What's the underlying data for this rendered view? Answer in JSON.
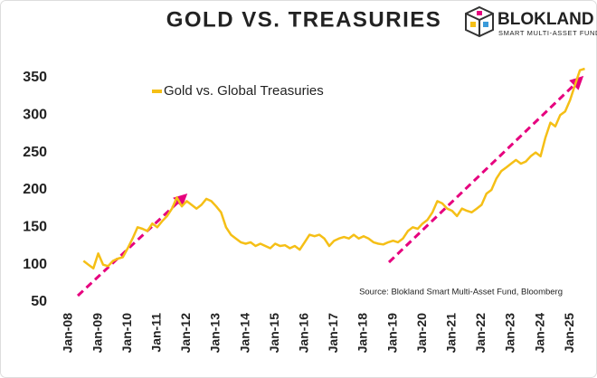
{
  "chart_data": {
    "type": "line",
    "title": "GOLD VS. TREASURIES",
    "brand": "BLOKLAND",
    "brand_tagline": "SMART MULTI-ASSET FUND",
    "source": "Source: Blokland Smart Multi-Asset Fund, Bloomberg",
    "categories": [
      "Jan-08",
      "Mar-08",
      "May-08",
      "Jul-08",
      "Sep-08",
      "Nov-08",
      "Jan-09",
      "Mar-09",
      "May-09",
      "Jul-09",
      "Sep-09",
      "Nov-09",
      "Jan-10",
      "Mar-10",
      "May-10",
      "Jul-10",
      "Sep-10",
      "Nov-10",
      "Jan-11",
      "Mar-11",
      "May-11",
      "Jul-11",
      "Sep-11",
      "Nov-11",
      "Jan-12",
      "Mar-12",
      "May-12",
      "Jul-12",
      "Sep-12",
      "Nov-12",
      "Jan-13",
      "Mar-13",
      "May-13",
      "Jul-13",
      "Sep-13",
      "Nov-13",
      "Jan-14",
      "Mar-14",
      "May-14",
      "Jul-14",
      "Sep-14",
      "Nov-14",
      "Jan-15",
      "Mar-15",
      "May-15",
      "Jul-15",
      "Sep-15",
      "Nov-15",
      "Jan-16",
      "Mar-16",
      "May-16",
      "Jul-16",
      "Sep-16",
      "Nov-16",
      "Jan-17",
      "Mar-17",
      "May-17",
      "Jul-17",
      "Sep-17",
      "Nov-17",
      "Jan-18",
      "Mar-18",
      "May-18",
      "Jul-18",
      "Sep-18",
      "Nov-18",
      "Jan-19",
      "Mar-19",
      "May-19",
      "Jul-19",
      "Sep-19",
      "Nov-19",
      "Jan-20",
      "Mar-20",
      "May-20",
      "Jul-20",
      "Sep-20",
      "Nov-20",
      "Jan-21",
      "Mar-21",
      "May-21",
      "Jul-21",
      "Sep-21",
      "Nov-21",
      "Jan-22",
      "Mar-22",
      "May-22",
      "Jul-22",
      "Sep-22",
      "Nov-22",
      "Jan-23",
      "Mar-23",
      "May-23",
      "Jul-23",
      "Sep-23",
      "Nov-23",
      "Jan-24",
      "Mar-24",
      "May-24",
      "Jul-24",
      "Sep-24",
      "Nov-24",
      "Jan-25",
      "Mar-25",
      "May-25",
      "Jul-25"
    ],
    "series": [
      {
        "name": "Gold vs. Global Treasuries",
        "color": "#f5bf16",
        "values": [
          null,
          null,
          null,
          105,
          100,
          95,
          115,
          100,
          98,
          105,
          108,
          110,
          122,
          135,
          150,
          148,
          145,
          155,
          150,
          158,
          165,
          175,
          190,
          178,
          185,
          180,
          175,
          180,
          188,
          185,
          178,
          170,
          150,
          140,
          135,
          130,
          128,
          130,
          125,
          128,
          125,
          122,
          128,
          125,
          126,
          122,
          125,
          120,
          130,
          140,
          138,
          140,
          135,
          125,
          132,
          135,
          137,
          135,
          140,
          135,
          138,
          135,
          130,
          128,
          127,
          130,
          132,
          130,
          135,
          145,
          150,
          148,
          155,
          160,
          170,
          185,
          182,
          175,
          172,
          165,
          175,
          172,
          170,
          175,
          180,
          195,
          200,
          215,
          225,
          230,
          235,
          240,
          235,
          238,
          245,
          250,
          245,
          270,
          290,
          285,
          300,
          305,
          320,
          340,
          360,
          362
        ]
      }
    ],
    "xticks": [
      "Jan-08",
      "Jan-09",
      "Jan-10",
      "Jan-11",
      "Jan-12",
      "Jan-13",
      "Jan-14",
      "Jan-15",
      "Jan-16",
      "Jan-17",
      "Jan-18",
      "Jan-19",
      "Jan-20",
      "Jan-21",
      "Jan-22",
      "Jan-23",
      "Jan-24",
      "Jan-25"
    ],
    "ylim": [
      50,
      375
    ],
    "yticks": [
      50,
      100,
      150,
      200,
      250,
      300,
      350
    ],
    "grid": false,
    "legend": "top-left"
  }
}
